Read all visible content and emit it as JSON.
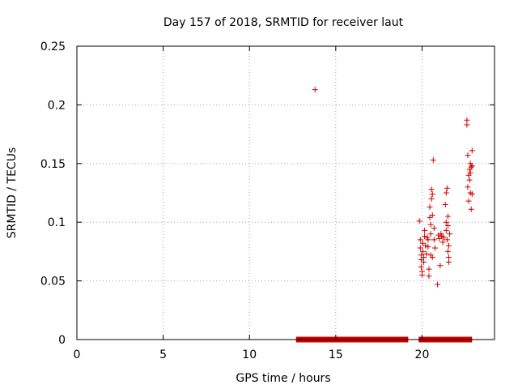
{
  "chart_data": {
    "type": "scatter",
    "title": "Day 157 of 2018, SRMTID for receiver laut",
    "xlabel": "GPS time / hours",
    "ylabel": "SRMTID / TECUs",
    "xlim": [
      0,
      24.2
    ],
    "ylim": [
      0,
      0.25
    ],
    "xticks": [
      0,
      5,
      10,
      15,
      20
    ],
    "xtick_labels": [
      "0",
      "5",
      "10",
      "15",
      "20"
    ],
    "yticks": [
      0,
      0.05,
      0.1,
      0.15,
      0.2,
      0.25
    ],
    "ytick_labels": [
      "0",
      "0.05",
      "0.1",
      "0.15",
      "0.2",
      "0.25"
    ],
    "grid": true,
    "marker": "+",
    "color": "#cc0000",
    "zero_segments": [
      [
        12.7,
        19.2
      ],
      [
        19.8,
        22.9
      ]
    ],
    "points": [
      [
        13.8,
        0.213
      ],
      [
        19.85,
        0.101
      ],
      [
        19.9,
        0.085
      ],
      [
        19.9,
        0.078
      ],
      [
        19.95,
        0.072
      ],
      [
        19.95,
        0.068
      ],
      [
        19.95,
        0.062
      ],
      [
        20.0,
        0.058
      ],
      [
        20.0,
        0.055
      ],
      [
        20.05,
        0.082
      ],
      [
        20.05,
        0.075
      ],
      [
        20.1,
        0.07
      ],
      [
        20.1,
        0.066
      ],
      [
        20.15,
        0.088
      ],
      [
        20.15,
        0.093
      ],
      [
        20.2,
        0.08
      ],
      [
        20.25,
        0.073
      ],
      [
        20.3,
        0.087
      ],
      [
        20.35,
        0.085
      ],
      [
        20.35,
        0.079
      ],
      [
        20.4,
        0.06
      ],
      [
        20.4,
        0.054
      ],
      [
        20.45,
        0.113
      ],
      [
        20.45,
        0.104
      ],
      [
        20.5,
        0.098
      ],
      [
        20.5,
        0.09
      ],
      [
        20.5,
        0.072
      ],
      [
        20.55,
        0.12
      ],
      [
        20.55,
        0.128
      ],
      [
        20.6,
        0.124
      ],
      [
        20.6,
        0.106
      ],
      [
        20.6,
        0.07
      ],
      [
        20.65,
        0.153
      ],
      [
        20.7,
        0.095
      ],
      [
        20.7,
        0.085
      ],
      [
        20.75,
        0.078
      ],
      [
        20.9,
        0.047
      ],
      [
        20.95,
        0.089
      ],
      [
        21.0,
        0.086
      ],
      [
        21.05,
        0.063
      ],
      [
        21.1,
        0.09
      ],
      [
        21.15,
        0.088
      ],
      [
        21.2,
        0.083
      ],
      [
        21.25,
        0.087
      ],
      [
        21.35,
        0.115
      ],
      [
        21.4,
        0.125
      ],
      [
        21.4,
        0.1
      ],
      [
        21.4,
        0.093
      ],
      [
        21.45,
        0.129
      ],
      [
        21.45,
        0.085
      ],
      [
        21.5,
        0.105
      ],
      [
        21.5,
        0.097
      ],
      [
        21.5,
        0.075
      ],
      [
        21.55,
        0.07
      ],
      [
        21.55,
        0.066
      ],
      [
        21.55,
        0.08
      ],
      [
        21.6,
        0.09
      ],
      [
        22.6,
        0.187
      ],
      [
        22.6,
        0.183
      ],
      [
        22.65,
        0.157
      ],
      [
        22.65,
        0.13
      ],
      [
        22.7,
        0.118
      ],
      [
        22.7,
        0.14
      ],
      [
        22.75,
        0.145
      ],
      [
        22.75,
        0.136
      ],
      [
        22.8,
        0.15
      ],
      [
        22.8,
        0.142
      ],
      [
        22.8,
        0.125
      ],
      [
        22.85,
        0.147
      ],
      [
        22.85,
        0.111
      ],
      [
        22.9,
        0.161
      ],
      [
        22.9,
        0.148
      ],
      [
        22.9,
        0.124
      ]
    ]
  }
}
